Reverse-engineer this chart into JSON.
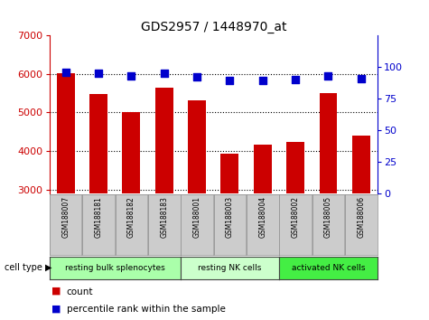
{
  "title": "GDS2957 / 1448970_at",
  "samples": [
    "GSM188007",
    "GSM188181",
    "GSM188182",
    "GSM188183",
    "GSM188001",
    "GSM188003",
    "GSM188004",
    "GSM188002",
    "GSM188005",
    "GSM188006"
  ],
  "counts": [
    6020,
    5470,
    5000,
    5640,
    5310,
    3930,
    4160,
    4230,
    5510,
    4390
  ],
  "percentile_ranks": [
    96,
    95,
    93,
    95,
    92,
    89,
    89,
    90,
    93,
    91
  ],
  "bar_color": "#cc0000",
  "dot_color": "#0000cc",
  "ylim_left": [
    2900,
    7000
  ],
  "ylim_right": [
    0,
    125
  ],
  "yticks_left": [
    3000,
    4000,
    5000,
    6000,
    7000
  ],
  "yticks_right": [
    0,
    25,
    50,
    75,
    100
  ],
  "groups": [
    {
      "label": "resting bulk splenocytes",
      "start": 0,
      "end": 4,
      "color": "#aaffaa"
    },
    {
      "label": "resting NK cells",
      "start": 4,
      "end": 7,
      "color": "#ccffcc"
    },
    {
      "label": "activated NK cells",
      "start": 7,
      "end": 10,
      "color": "#44ee44"
    }
  ],
  "cell_type_label": "cell type",
  "legend_count_label": "count",
  "legend_pct_label": "percentile rank within the sample",
  "tick_label_color_left": "#cc0000",
  "tick_label_color_right": "#0000cc",
  "sample_box_color": "#cccccc",
  "bar_bottom": 2900
}
